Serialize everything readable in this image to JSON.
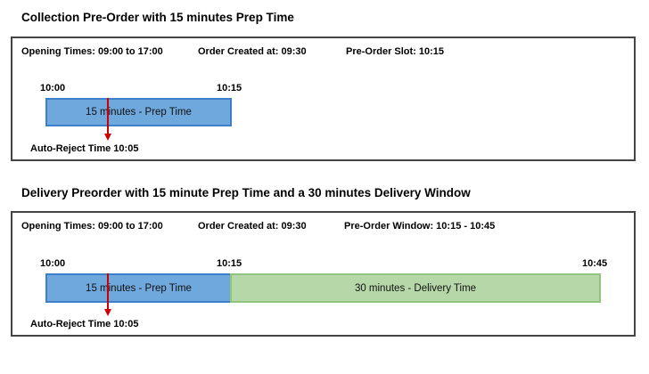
{
  "diagrams": [
    {
      "title": "Collection Pre-Order with 15 minutes Prep Time",
      "opening_times": "Opening Times: 09:00 to 17:00",
      "order_created": "Order Created at: 09:30",
      "preorder": "Pre-Order Slot: 10:15",
      "ticks": [
        "10:00",
        "10:15"
      ],
      "prep_label": "15 minutes - Prep Time",
      "auto_reject": "Auto-Reject Time 10:05"
    },
    {
      "title": "Delivery Preorder with 15 minute Prep Time and a 30 minutes Delivery Window",
      "opening_times": "Opening Times: 09:00 to 17:00",
      "order_created": "Order Created at: 09:30",
      "preorder": "Pre-Order Window: 10:15 - 10:45",
      "ticks": [
        "10:00",
        "10:15",
        "10:45"
      ],
      "prep_label": "15 minutes - Prep Time",
      "delivery_label": "30 minutes - Delivery Time",
      "auto_reject": "Auto-Reject Time 10:05"
    }
  ],
  "colors": {
    "prep": "#6fa8dc",
    "delivery": "#b6d7a8",
    "auto_reject_arrow": "#cc0000"
  }
}
